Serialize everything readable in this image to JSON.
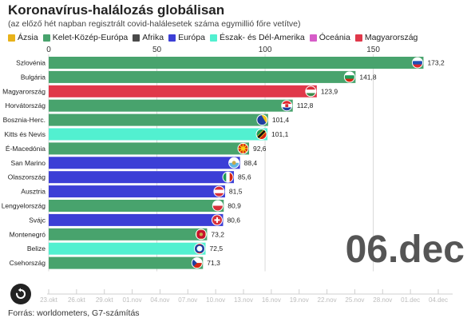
{
  "title": "Koronavírus-halálozás globálisan",
  "subtitle": "(az előző hét napban regisztrált covid-halálesetek száma egymillió főre vetítve)",
  "legend": [
    {
      "label": "Ázsia",
      "color": "#e8b21a"
    },
    {
      "label": "Kelet-Közép-Európa",
      "color": "#48a36d"
    },
    {
      "label": "Afrika",
      "color": "#4a4a4a"
    },
    {
      "label": "Európa",
      "color": "#3c3fd6"
    },
    {
      "label": "Észak- és Dél-Amerika",
      "color": "#52f0d0"
    },
    {
      "label": "Óceánia",
      "color": "#d65cc8"
    },
    {
      "label": "Magyarország",
      "color": "#e0384a"
    }
  ],
  "date_label": "06.dec",
  "source": "Forrás: worldometers, G7-számítás",
  "replay_icon": "replay-icon",
  "chart_data": {
    "type": "bar",
    "orientation": "horizontal",
    "xlim": [
      0,
      190
    ],
    "x_ticks": [
      0,
      50,
      100,
      150
    ],
    "grid": true,
    "categories": [
      "Szlovénia",
      "Bulgária",
      "Magyarország",
      "Horvátország",
      "Bosznia-Herc.",
      "Kitts és Nevis",
      "É-Macedónia",
      "San Marino",
      "Olaszország",
      "Ausztria",
      "Lengyelország",
      "Svájc",
      "Montenegró",
      "Belize",
      "Csehország"
    ],
    "values": [
      173.2,
      141.8,
      123.9,
      112.8,
      101.4,
      101.1,
      92.6,
      88.4,
      85.6,
      81.5,
      80.9,
      80.6,
      73.2,
      72.5,
      71.3
    ],
    "value_labels": [
      "173,2",
      "141,8",
      "123,9",
      "112,8",
      "101,4",
      "101,1",
      "92,6",
      "88,4",
      "85,6",
      "81,5",
      "80,9",
      "80,6",
      "73,2",
      "72,5",
      "71,3"
    ],
    "regions": [
      "Kelet-Közép-Európa",
      "Kelet-Közép-Európa",
      "Magyarország",
      "Kelet-Közép-Európa",
      "Kelet-Közép-Európa",
      "Észak- és Dél-Amerika",
      "Kelet-Közép-Európa",
      "Európa",
      "Európa",
      "Európa",
      "Kelet-Közép-Európa",
      "Európa",
      "Kelet-Közép-Európa",
      "Észak- és Dél-Amerika",
      "Kelet-Közép-Európa"
    ],
    "flag_icons": [
      "slovenia-flag-icon",
      "bulgaria-flag-icon",
      "hungary-flag-icon",
      "croatia-flag-icon",
      "bosnia-flag-icon",
      "saint-kitts-flag-icon",
      "north-macedonia-flag-icon",
      "san-marino-flag-icon",
      "italy-flag-icon",
      "austria-flag-icon",
      "poland-flag-icon",
      "switzerland-flag-icon",
      "montenegro-flag-icon",
      "belize-flag-icon",
      "czechia-flag-icon"
    ],
    "timeline_labels": [
      "23.okt",
      "26.okt",
      "29.okt",
      "01.nov",
      "04.nov",
      "07.nov",
      "10.nov",
      "13.nov",
      "16.nov",
      "19.nov",
      "22.nov",
      "25.nov",
      "28.nov",
      "01.dec",
      "04.dec"
    ]
  }
}
